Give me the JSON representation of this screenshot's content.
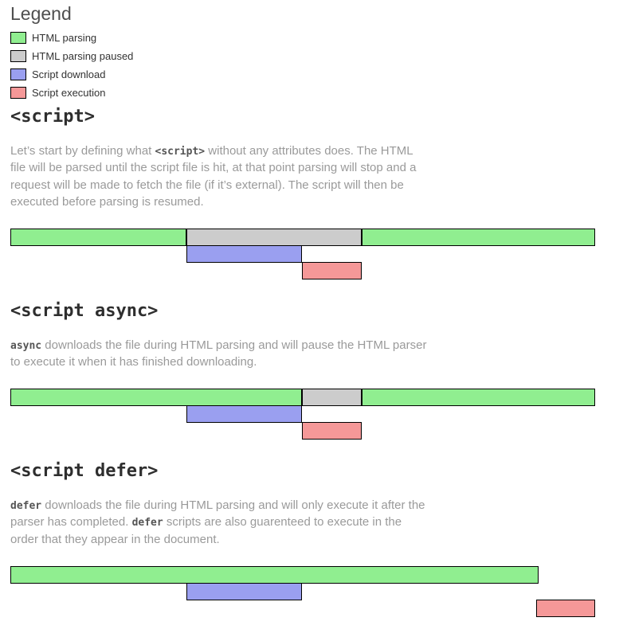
{
  "colors": {
    "html_parsing": "#90ee90",
    "html_parsing_paused": "#cccccc",
    "script_download": "#9a9ff0",
    "script_execution": "#f59898",
    "bar_border": "#000000"
  },
  "legend": {
    "title": "Legend",
    "items": [
      {
        "label": "HTML parsing",
        "type": "html_parsing",
        "color": "#90ee90"
      },
      {
        "label": "HTML parsing paused",
        "type": "html_parsing_paused",
        "color": "#cccccc"
      },
      {
        "label": "Script download",
        "type": "script_download",
        "color": "#9a9ff0"
      },
      {
        "label": "Script execution",
        "type": "script_execution",
        "color": "#f59898"
      }
    ]
  },
  "sections": [
    {
      "heading": "<script>",
      "paragraph": [
        {
          "kind": "text",
          "text": "Let’s start by defining what "
        },
        {
          "kind": "code",
          "text": "<script>"
        },
        {
          "kind": "text",
          "text": " without any attributes does. The HTML file will be parsed until the script file is hit, at that point parsing will stop and a request will be made to fetch the file (if it’s external). The script will then be executed before parsing is resumed."
        }
      ],
      "diagram": {
        "rows": [
          {
            "segments": [
              {
                "type": "html_parsing",
                "start": 0,
                "end": 30.1
              },
              {
                "type": "html_parsing_paused",
                "start": 30.1,
                "end": 60.1
              },
              {
                "type": "html_parsing",
                "start": 60.1,
                "end": 100
              }
            ]
          },
          {
            "segments": [
              {
                "type": "script_download",
                "start": 30.1,
                "end": 49.9
              }
            ]
          },
          {
            "segments": [
              {
                "type": "script_execution",
                "start": 49.9,
                "end": 60.1
              }
            ]
          }
        ]
      }
    },
    {
      "heading": "<script async>",
      "paragraph": [
        {
          "kind": "code",
          "text": "async"
        },
        {
          "kind": "text",
          "text": " downloads the file during HTML parsing and will pause the HTML parser to execute it when it has finished downloading."
        }
      ],
      "diagram": {
        "rows": [
          {
            "segments": [
              {
                "type": "html_parsing",
                "start": 0,
                "end": 49.9
              },
              {
                "type": "html_parsing_paused",
                "start": 49.9,
                "end": 60.1
              },
              {
                "type": "html_parsing",
                "start": 60.1,
                "end": 100
              }
            ]
          },
          {
            "segments": [
              {
                "type": "script_download",
                "start": 30.1,
                "end": 49.9
              }
            ]
          },
          {
            "segments": [
              {
                "type": "script_execution",
                "start": 49.9,
                "end": 60.1
              }
            ]
          }
        ]
      }
    },
    {
      "heading": "<script defer>",
      "paragraph": [
        {
          "kind": "code",
          "text": "defer"
        },
        {
          "kind": "text",
          "text": " downloads the file during HTML parsing and will only execute it after the parser has completed. "
        },
        {
          "kind": "code",
          "text": "defer"
        },
        {
          "kind": "text",
          "text": " scripts are also guarenteed to execute in the order that they appear in the document."
        }
      ],
      "diagram": {
        "rows": [
          {
            "segments": [
              {
                "type": "html_parsing",
                "start": 0,
                "end": 90.3
              }
            ]
          },
          {
            "segments": [
              {
                "type": "script_download",
                "start": 30.1,
                "end": 49.9
              }
            ]
          },
          {
            "segments": [
              {
                "type": "script_execution",
                "start": 89.9,
                "end": 100
              }
            ]
          }
        ]
      }
    }
  ]
}
